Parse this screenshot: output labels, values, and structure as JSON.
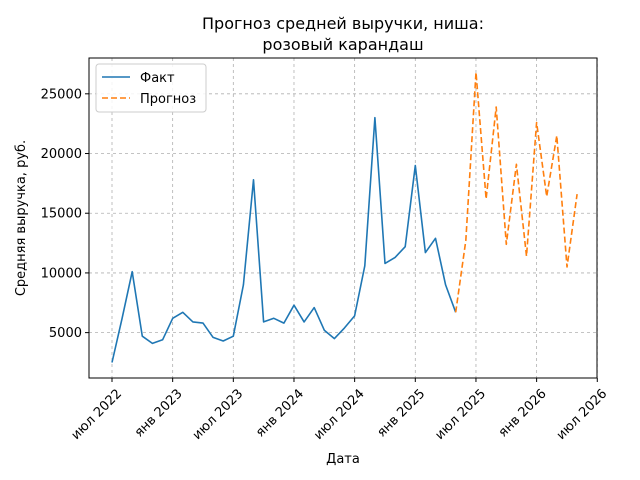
{
  "chart_data": {
    "type": "line",
    "title_line1": "Прогноз средней выручки, ниша:",
    "title_line2": "розовый карандаш",
    "xlabel": "Дата",
    "ylabel": "Средняя выручка, руб.",
    "x_ticks": [
      "июл 2022",
      "янв 2023",
      "июл 2023",
      "янв 2024",
      "июл 2024",
      "янв 2025",
      "июл 2025",
      "янв 2026",
      "июл 2026"
    ],
    "y_ticks": [
      "5000",
      "10000",
      "15000",
      "20000",
      "25000"
    ],
    "ylim": [
      1200,
      28000
    ],
    "legend": {
      "placement": "top-left",
      "entries": [
        "Факт",
        "Прогноз"
      ]
    },
    "grid": true,
    "series": [
      {
        "name": "Факт",
        "color": "#1f77b4",
        "style": "solid",
        "points": [
          [
            "2022-07",
            2500
          ],
          [
            "2022-08",
            6200
          ],
          [
            "2022-09",
            10100
          ],
          [
            "2022-10",
            4700
          ],
          [
            "2022-11",
            4100
          ],
          [
            "2022-12",
            4400
          ],
          [
            "2023-01",
            6200
          ],
          [
            "2023-02",
            6700
          ],
          [
            "2023-03",
            5900
          ],
          [
            "2023-04",
            5800
          ],
          [
            "2023-05",
            4600
          ],
          [
            "2023-06",
            4300
          ],
          [
            "2023-07",
            4700
          ],
          [
            "2023-08",
            9000
          ],
          [
            "2023-09",
            17800
          ],
          [
            "2023-10",
            5900
          ],
          [
            "2023-11",
            6200
          ],
          [
            "2023-12",
            5800
          ],
          [
            "2024-01",
            7300
          ],
          [
            "2024-02",
            5900
          ],
          [
            "2024-03",
            7100
          ],
          [
            "2024-04",
            5200
          ],
          [
            "2024-05",
            4500
          ],
          [
            "2024-06",
            5400
          ],
          [
            "2024-07",
            6400
          ],
          [
            "2024-08",
            10600
          ],
          [
            "2024-09",
            23000
          ],
          [
            "2024-10",
            10800
          ],
          [
            "2024-11",
            11300
          ],
          [
            "2024-12",
            12200
          ],
          [
            "2025-01",
            19000
          ],
          [
            "2025-02",
            11700
          ],
          [
            "2025-03",
            12900
          ],
          [
            "2025-04",
            9000
          ],
          [
            "2025-05",
            6700
          ]
        ]
      },
      {
        "name": "Прогноз",
        "color": "#ff7f0e",
        "style": "dashed",
        "points": [
          [
            "2025-05",
            6700
          ],
          [
            "2025-06",
            12700
          ],
          [
            "2025-07",
            26800
          ],
          [
            "2025-08",
            16200
          ],
          [
            "2025-09",
            23900
          ],
          [
            "2025-10",
            12400
          ],
          [
            "2025-11",
            19100
          ],
          [
            "2025-12",
            11400
          ],
          [
            "2026-01",
            22600
          ],
          [
            "2026-02",
            16400
          ],
          [
            "2026-03",
            21500
          ],
          [
            "2026-04",
            10500
          ],
          [
            "2026-05",
            16600
          ]
        ]
      }
    ]
  }
}
